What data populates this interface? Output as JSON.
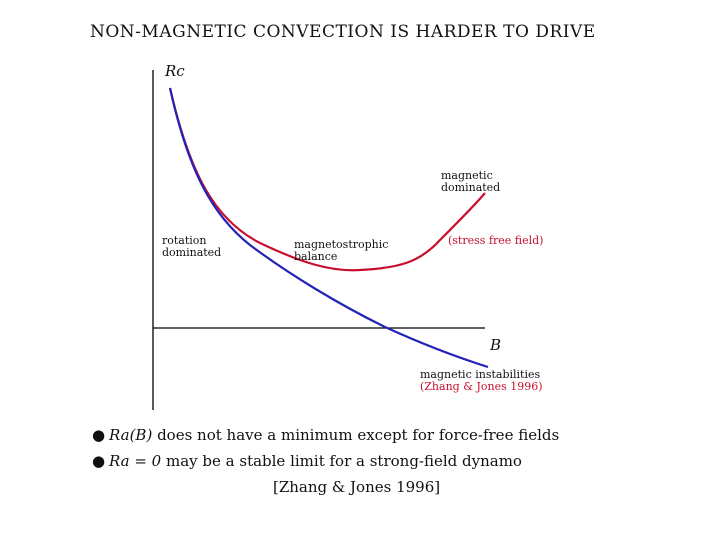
{
  "title": "NON-MAGNETIC CONVECTION IS HARDER TO DRIVE",
  "axes": {
    "y_label": "Rc",
    "x_label": "B"
  },
  "labels": {
    "rotation_dominated": [
      "rotation",
      "dominated"
    ],
    "magnetostrophic_balance": [
      "magnetostrophic",
      "balance"
    ],
    "magnetic_dominated": [
      "magnetic",
      "dominated"
    ],
    "stress_free_field": "(stress free field)",
    "magnetic_instabilities": "magnetic instabilities",
    "zhang_jones_citation": "(Zhang & Jones 1996)"
  },
  "bullets": [
    {
      "math": "Ra(B)",
      "text": " does not have a minimum except for force-free fields"
    },
    {
      "math": "Ra = 0",
      "text": " may be a stable limit for a strong-field dynamo"
    }
  ],
  "reference": "[Zhang & Jones 1996]",
  "colors": {
    "red_curve": "#c8102e",
    "blue_curve": "#2323b8",
    "axes": "#000000"
  }
}
